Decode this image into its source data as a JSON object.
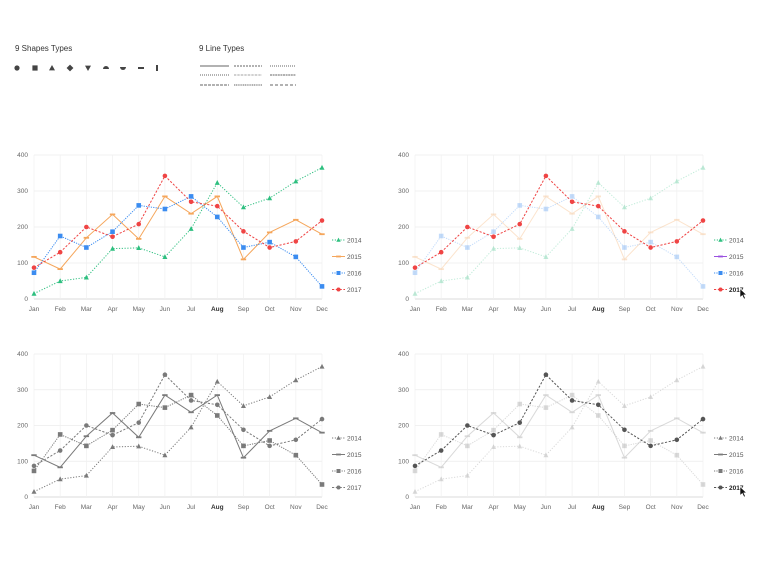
{
  "shapes_header": {
    "title": "9 Shapes Types",
    "shapes": [
      "circle-icon",
      "square-icon",
      "triangle-icon",
      "diamond-icon",
      "triangle-down-icon",
      "half-circle-up-icon",
      "half-circle-down-icon",
      "dash-icon",
      "vertical-bar-icon"
    ]
  },
  "lines_header": {
    "title": "9 Line Types"
  },
  "colors": {
    "s2014": "#2dbf7f",
    "s2015": "#f5a65b",
    "s2016": "#3b8cf0",
    "s2017": "#ef4444",
    "s2015_legend": "#9b51e0",
    "grey": "#7a7a7a",
    "dark": "#555555"
  },
  "chart_data": [
    {
      "type": "line",
      "variant": "color",
      "categories": [
        "Jan",
        "Feb",
        "Mar",
        "Apr",
        "May",
        "Jun",
        "Jul",
        "Aug",
        "Sep",
        "Oct",
        "Nov",
        "Dec"
      ],
      "highlight_category": "Aug",
      "ylim": [
        0,
        400
      ],
      "yticks": [
        "0",
        "100",
        "200",
        "300",
        "400"
      ],
      "series": [
        {
          "name": "2014",
          "marker": "triangle",
          "values": [
            15,
            50,
            60,
            140,
            142,
            117,
            195,
            323,
            255,
            280,
            327,
            365
          ]
        },
        {
          "name": "2015",
          "marker": "dash",
          "values": [
            117,
            83,
            170,
            235,
            167,
            285,
            237,
            285,
            110,
            185,
            220,
            180
          ]
        },
        {
          "name": "2016",
          "marker": "square",
          "values": [
            73,
            175,
            143,
            187,
            260,
            250,
            285,
            228,
            143,
            158,
            117,
            35
          ]
        },
        {
          "name": "2017",
          "marker": "circle",
          "values": [
            87,
            130,
            200,
            173,
            208,
            342,
            270,
            258,
            188,
            143,
            160,
            218
          ]
        }
      ]
    },
    {
      "type": "line",
      "variant": "color-highlight",
      "highlight_series": "2017",
      "categories": [
        "Jan",
        "Feb",
        "Mar",
        "Apr",
        "May",
        "Jun",
        "Jul",
        "Aug",
        "Sep",
        "Oct",
        "Nov",
        "Dec"
      ],
      "highlight_category": "Aug",
      "ylim": [
        0,
        400
      ],
      "yticks": [
        "0",
        "100",
        "200",
        "300",
        "400"
      ],
      "series": [
        {
          "name": "2014",
          "marker": "triangle",
          "values": [
            15,
            50,
            60,
            140,
            142,
            117,
            195,
            323,
            255,
            280,
            327,
            365
          ]
        },
        {
          "name": "2015",
          "marker": "dash",
          "values": [
            117,
            83,
            170,
            235,
            167,
            285,
            237,
            285,
            110,
            185,
            220,
            180
          ]
        },
        {
          "name": "2016",
          "marker": "square",
          "values": [
            73,
            175,
            143,
            187,
            260,
            250,
            285,
            228,
            143,
            158,
            117,
            35
          ]
        },
        {
          "name": "2017",
          "marker": "circle",
          "values": [
            87,
            130,
            200,
            173,
            208,
            342,
            270,
            258,
            188,
            143,
            160,
            218
          ]
        }
      ]
    },
    {
      "type": "line",
      "variant": "grey",
      "categories": [
        "Jan",
        "Feb",
        "Mar",
        "Apr",
        "May",
        "Jun",
        "Jul",
        "Aug",
        "Sep",
        "Oct",
        "Nov",
        "Dec"
      ],
      "highlight_category": "Aug",
      "ylim": [
        0,
        400
      ],
      "yticks": [
        "0",
        "100",
        "200",
        "300",
        "400"
      ],
      "series": [
        {
          "name": "2014",
          "marker": "triangle",
          "values": [
            15,
            50,
            60,
            140,
            142,
            117,
            195,
            323,
            255,
            280,
            327,
            365
          ]
        },
        {
          "name": "2015",
          "marker": "dash",
          "values": [
            117,
            83,
            170,
            235,
            167,
            285,
            237,
            285,
            110,
            185,
            220,
            180
          ]
        },
        {
          "name": "2016",
          "marker": "square",
          "values": [
            73,
            175,
            143,
            187,
            260,
            250,
            285,
            228,
            143,
            158,
            117,
            35
          ]
        },
        {
          "name": "2017",
          "marker": "circle",
          "values": [
            87,
            130,
            200,
            173,
            208,
            342,
            270,
            258,
            188,
            143,
            160,
            218
          ]
        }
      ]
    },
    {
      "type": "line",
      "variant": "grey-highlight",
      "highlight_series": "2017",
      "categories": [
        "Jan",
        "Feb",
        "Mar",
        "Apr",
        "May",
        "Jun",
        "Jul",
        "Aug",
        "Sep",
        "Oct",
        "Nov",
        "Dec"
      ],
      "highlight_category": "Aug",
      "ylim": [
        0,
        400
      ],
      "yticks": [
        "0",
        "100",
        "200",
        "300",
        "400"
      ],
      "series": [
        {
          "name": "2014",
          "marker": "triangle",
          "values": [
            15,
            50,
            60,
            140,
            142,
            117,
            195,
            323,
            255,
            280,
            327,
            365
          ]
        },
        {
          "name": "2015",
          "marker": "dash",
          "values": [
            117,
            83,
            170,
            235,
            167,
            285,
            237,
            285,
            110,
            185,
            220,
            180
          ]
        },
        {
          "name": "2016",
          "marker": "square",
          "values": [
            73,
            175,
            143,
            187,
            260,
            250,
            285,
            228,
            143,
            158,
            117,
            35
          ]
        },
        {
          "name": "2017",
          "marker": "circle",
          "values": [
            87,
            130,
            200,
            173,
            208,
            342,
            270,
            258,
            188,
            143,
            160,
            218
          ]
        }
      ]
    }
  ]
}
